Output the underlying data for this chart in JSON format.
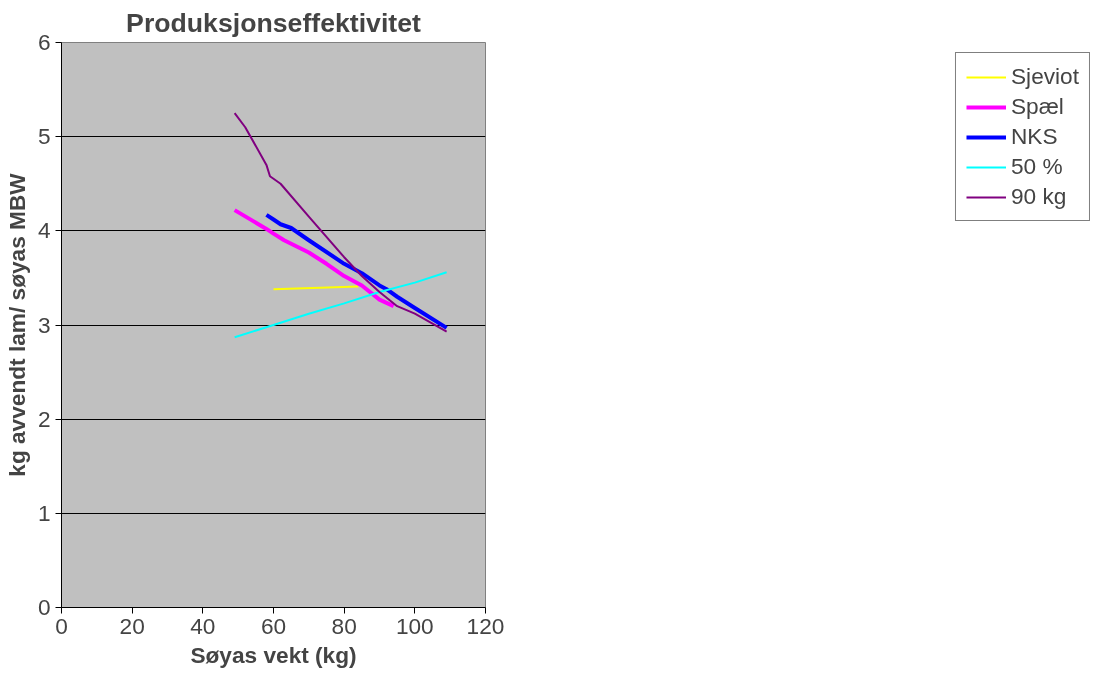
{
  "chart_data": {
    "type": "line",
    "title": "Produksjonseffektivitet",
    "xlabel": "Søyas vekt (kg)",
    "ylabel": "kg avvendt lam/ søyas MBW",
    "xlim": [
      0,
      120
    ],
    "xticks": [
      0,
      20,
      40,
      60,
      80,
      100,
      120
    ],
    "ylim": [
      0,
      6
    ],
    "yticks": [
      0,
      1,
      2,
      3,
      4,
      5,
      6
    ],
    "grid": "y",
    "legend": "right",
    "marker": "none",
    "line_style": "solid",
    "series": [
      {
        "name": "Sjeviot",
        "color": "#ffff00",
        "x": [
          60,
          84
        ],
        "values": [
          3.38,
          3.41
        ]
      },
      {
        "name": "Spæl",
        "color": "#ff00ff",
        "x": [
          49,
          58,
          60,
          63,
          70,
          75,
          80,
          85,
          90,
          94
        ],
        "values": [
          4.22,
          4.02,
          3.97,
          3.9,
          3.77,
          3.65,
          3.52,
          3.42,
          3.27,
          3.2
        ]
      },
      {
        "name": "NKS",
        "color": "#0000ff",
        "x": [
          58,
          60,
          62,
          65,
          70,
          80,
          85,
          90,
          92,
          95,
          100,
          109
        ],
        "values": [
          4.17,
          4.12,
          4.07,
          4.03,
          3.9,
          3.65,
          3.55,
          3.42,
          3.38,
          3.3,
          3.18,
          2.97
        ]
      },
      {
        "name": "50 %",
        "color": "#00ffff",
        "x": [
          49,
          60,
          70,
          80,
          90,
          100,
          109
        ],
        "values": [
          2.87,
          3.0,
          3.12,
          3.23,
          3.35,
          3.45,
          3.56
        ]
      },
      {
        "name": "90 kg",
        "color": "#800080",
        "x": [
          49,
          52,
          58,
          59,
          62,
          70,
          80,
          85,
          90,
          95,
          100,
          109
        ],
        "values": [
          5.25,
          5.1,
          4.7,
          4.58,
          4.5,
          4.15,
          3.72,
          3.52,
          3.35,
          3.2,
          3.12,
          2.93
        ]
      }
    ]
  }
}
